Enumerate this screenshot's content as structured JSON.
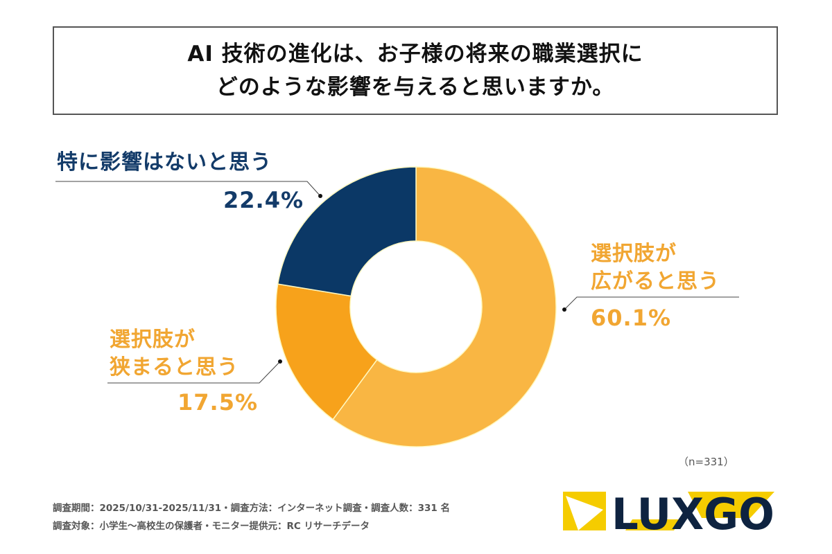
{
  "title": {
    "line1": "AI 技術の進化は、お子様の将来の職業選択に",
    "line2": "どのような影響を与えると思いますか。"
  },
  "chart_data": {
    "type": "pie",
    "donut": true,
    "start_angle": "12 o'clock",
    "direction": "clockwise",
    "slices": [
      {
        "label_line1": "選択肢が",
        "label_line2": "広がると思う",
        "value": 60.1,
        "value_label": "60.1%",
        "color": "#F9B643"
      },
      {
        "label_line1": "選択肢が",
        "label_line2": "狭まると思う",
        "value": 17.5,
        "value_label": "17.5%",
        "color": "#F7A21B"
      },
      {
        "label_line1": "特に影響はないと思う",
        "label_line2": "",
        "value": 22.4,
        "value_label": "22.4%",
        "color": "#0B3866"
      }
    ],
    "sample_note": "（n=331）"
  },
  "footer": {
    "line1": "調査期間：2025/10/31-2025/11/31・調査方法：インターネット調査・調査人数：331 名",
    "line2": "調査対象：小学生〜高校生の保護者・モニター提供元：RC リサーチデータ"
  },
  "logo": {
    "text": "LUXGO",
    "accent": "#F5CC00",
    "color": "#0E2340"
  }
}
